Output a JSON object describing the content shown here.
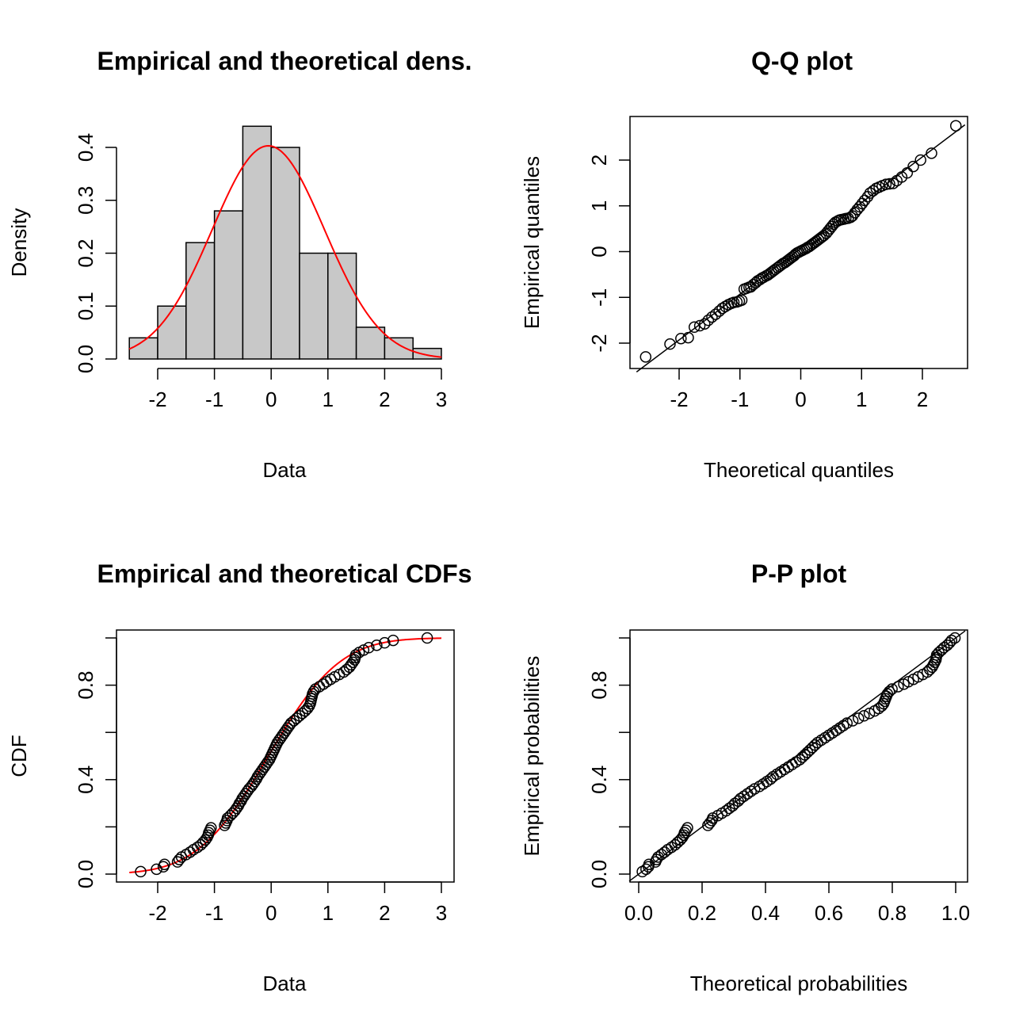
{
  "chart_data": [
    {
      "type": "bar",
      "title": "Empirical and theoretical dens.",
      "xlabel": "Data",
      "ylabel": "Density",
      "xlim": [
        -2.6,
        3.0
      ],
      "ylim": [
        0,
        0.44
      ],
      "x_ticks": [
        -2,
        -1,
        0,
        1,
        2,
        3
      ],
      "y_ticks": [
        0.0,
        0.1,
        0.2,
        0.3,
        0.4
      ],
      "x_tick_labels": [
        "-2",
        "-1",
        "0",
        "1",
        "2",
        "3"
      ],
      "y_tick_labels": [
        "0.0",
        "0.1",
        "0.2",
        "0.3",
        "0.4"
      ],
      "bins": [
        {
          "from": -2.5,
          "to": -2.0,
          "density": 0.04
        },
        {
          "from": -2.0,
          "to": -1.5,
          "density": 0.1
        },
        {
          "from": -1.5,
          "to": -1.0,
          "density": 0.22
        },
        {
          "from": -1.0,
          "to": -0.5,
          "density": 0.28
        },
        {
          "from": -0.5,
          "to": 0.0,
          "density": 0.44
        },
        {
          "from": 0.0,
          "to": 0.5,
          "density": 0.4
        },
        {
          "from": 0.5,
          "to": 1.0,
          "density": 0.2
        },
        {
          "from": 1.0,
          "to": 1.5,
          "density": 0.2
        },
        {
          "from": 1.5,
          "to": 2.0,
          "density": 0.06
        },
        {
          "from": 2.0,
          "to": 2.5,
          "density": 0.04
        },
        {
          "from": 2.5,
          "to": 3.0,
          "density": 0.02
        }
      ],
      "curve": {
        "kind": "normal-density",
        "mean": -0.05,
        "sd": 0.99,
        "from": -2.5,
        "to": 3.0,
        "color": "#ff0000"
      },
      "bar_color": "#c8c8c8"
    },
    {
      "type": "scatter",
      "title": "Q-Q plot",
      "xlabel": "Theoretical quantiles",
      "ylabel": "Empirical quantiles",
      "xlim": [
        -2.7,
        2.7
      ],
      "ylim": [
        -2.5,
        2.8
      ],
      "x_ticks": [
        -2,
        -1,
        0,
        1,
        2
      ],
      "y_ticks": [
        -2,
        -1,
        0,
        1,
        2
      ],
      "x_tick_labels": [
        "-2",
        "-1",
        "0",
        "1",
        "2"
      ],
      "y_tick_labels": [
        "-2",
        "-1",
        "0",
        "1",
        "2"
      ],
      "points": [
        [
          -2.55,
          -2.3
        ],
        [
          -2.15,
          -2.02
        ],
        [
          -1.97,
          -1.9
        ],
        [
          -1.85,
          -1.88
        ],
        [
          -1.75,
          -1.65
        ],
        [
          -1.66,
          -1.62
        ],
        [
          -1.58,
          -1.58
        ],
        [
          -1.52,
          -1.5
        ],
        [
          -1.46,
          -1.43
        ],
        [
          -1.4,
          -1.37
        ],
        [
          -1.34,
          -1.3
        ],
        [
          -1.29,
          -1.24
        ],
        [
          -1.24,
          -1.2
        ],
        [
          -1.19,
          -1.16
        ],
        [
          -1.14,
          -1.13
        ],
        [
          -1.1,
          -1.11
        ],
        [
          -1.05,
          -1.1
        ],
        [
          -1.01,
          -1.08
        ],
        [
          -0.97,
          -1.06
        ],
        [
          -0.93,
          -0.82
        ],
        [
          -0.89,
          -0.8
        ],
        [
          -0.85,
          -0.78
        ],
        [
          -0.82,
          -0.77
        ],
        [
          -0.78,
          -0.72
        ],
        [
          -0.74,
          -0.68
        ],
        [
          -0.71,
          -0.64
        ],
        [
          -0.67,
          -0.61
        ],
        [
          -0.64,
          -0.58
        ],
        [
          -0.61,
          -0.56
        ],
        [
          -0.57,
          -0.53
        ],
        [
          -0.54,
          -0.51
        ],
        [
          -0.51,
          -0.48
        ],
        [
          -0.48,
          -0.45
        ],
        [
          -0.45,
          -0.42
        ],
        [
          -0.42,
          -0.39
        ],
        [
          -0.38,
          -0.35
        ],
        [
          -0.35,
          -0.32
        ],
        [
          -0.32,
          -0.29
        ],
        [
          -0.29,
          -0.26
        ],
        [
          -0.26,
          -0.24
        ],
        [
          -0.23,
          -0.21
        ],
        [
          -0.2,
          -0.18
        ],
        [
          -0.17,
          -0.15
        ],
        [
          -0.14,
          -0.12
        ],
        [
          -0.11,
          -0.09
        ],
        [
          -0.09,
          -0.06
        ],
        [
          -0.06,
          -0.03
        ],
        [
          -0.03,
          -0.01
        ],
        [
          0.0,
          0.01
        ],
        [
          0.03,
          0.03
        ],
        [
          0.06,
          0.05
        ],
        [
          0.09,
          0.07
        ],
        [
          0.11,
          0.09
        ],
        [
          0.14,
          0.11
        ],
        [
          0.17,
          0.14
        ],
        [
          0.2,
          0.17
        ],
        [
          0.23,
          0.2
        ],
        [
          0.26,
          0.23
        ],
        [
          0.29,
          0.26
        ],
        [
          0.32,
          0.29
        ],
        [
          0.35,
          0.32
        ],
        [
          0.38,
          0.35
        ],
        [
          0.42,
          0.4
        ],
        [
          0.45,
          0.45
        ],
        [
          0.48,
          0.5
        ],
        [
          0.51,
          0.55
        ],
        [
          0.54,
          0.6
        ],
        [
          0.57,
          0.64
        ],
        [
          0.61,
          0.67
        ],
        [
          0.64,
          0.69
        ],
        [
          0.67,
          0.7
        ],
        [
          0.71,
          0.71
        ],
        [
          0.74,
          0.72
        ],
        [
          0.78,
          0.73
        ],
        [
          0.82,
          0.75
        ],
        [
          0.85,
          0.78
        ],
        [
          0.89,
          0.85
        ],
        [
          0.93,
          0.92
        ],
        [
          0.97,
          0.98
        ],
        [
          1.01,
          1.05
        ],
        [
          1.05,
          1.12
        ],
        [
          1.1,
          1.2
        ],
        [
          1.14,
          1.28
        ],
        [
          1.19,
          1.33
        ],
        [
          1.24,
          1.38
        ],
        [
          1.29,
          1.41
        ],
        [
          1.34,
          1.44
        ],
        [
          1.4,
          1.47
        ],
        [
          1.46,
          1.48
        ],
        [
          1.52,
          1.49
        ],
        [
          1.58,
          1.55
        ],
        [
          1.66,
          1.63
        ],
        [
          1.75,
          1.72
        ],
        [
          1.85,
          1.86
        ],
        [
          1.97,
          2.0
        ],
        [
          2.15,
          2.15
        ],
        [
          2.55,
          2.75
        ]
      ],
      "reference_line": {
        "from": [
          -2.7,
          -2.63
        ],
        "to": [
          2.7,
          2.77
        ]
      }
    },
    {
      "type": "line",
      "title": "Empirical and theoretical CDFs",
      "xlabel": "Data",
      "ylabel": "CDF",
      "xlim": [
        -2.8,
        3.2
      ],
      "ylim": [
        -0.03,
        1.03
      ],
      "x_ticks": [
        -2,
        -1,
        0,
        1,
        2,
        3
      ],
      "y_ticks": [
        0.0,
        0.2,
        0.4,
        0.6,
        0.8,
        1.0
      ],
      "x_tick_labels": [
        "-2",
        "-1",
        "0",
        "1",
        "2",
        "3"
      ],
      "y_tick_labels": [
        "0.0",
        "",
        "0.4",
        "",
        "0.8",
        ""
      ],
      "curve": {
        "kind": "normal-cdf",
        "mean": -0.05,
        "sd": 0.99,
        "from": -2.5,
        "to": 3.0,
        "color": "#ff0000"
      },
      "points_x": [
        -2.3,
        -2.02,
        -1.9,
        -1.88,
        -1.65,
        -1.62,
        -1.58,
        -1.5,
        -1.43,
        -1.37,
        -1.3,
        -1.24,
        -1.2,
        -1.16,
        -1.13,
        -1.11,
        -1.1,
        -1.08,
        -1.06,
        -0.82,
        -0.8,
        -0.78,
        -0.77,
        -0.72,
        -0.68,
        -0.64,
        -0.61,
        -0.58,
        -0.56,
        -0.53,
        -0.51,
        -0.48,
        -0.45,
        -0.42,
        -0.39,
        -0.35,
        -0.32,
        -0.29,
        -0.26,
        -0.24,
        -0.21,
        -0.18,
        -0.15,
        -0.12,
        -0.09,
        -0.06,
        -0.03,
        -0.01,
        0.01,
        0.03,
        0.05,
        0.07,
        0.09,
        0.11,
        0.14,
        0.17,
        0.2,
        0.23,
        0.26,
        0.29,
        0.32,
        0.35,
        0.4,
        0.45,
        0.5,
        0.55,
        0.6,
        0.64,
        0.67,
        0.69,
        0.7,
        0.71,
        0.72,
        0.73,
        0.75,
        0.78,
        0.85,
        0.92,
        0.98,
        1.05,
        1.12,
        1.2,
        1.28,
        1.33,
        1.38,
        1.41,
        1.44,
        1.47,
        1.48,
        1.49,
        1.55,
        1.63,
        1.72,
        1.86,
        2.0,
        2.15,
        2.75
      ]
    },
    {
      "type": "scatter",
      "title": "P-P plot",
      "xlabel": "Theoretical probabilities",
      "ylabel": "Empirical probabilities",
      "xlim": [
        -0.03,
        1.03
      ],
      "ylim": [
        -0.03,
        1.03
      ],
      "x_ticks": [
        0.0,
        0.2,
        0.4,
        0.6,
        0.8,
        1.0
      ],
      "y_ticks": [
        0.0,
        0.2,
        0.4,
        0.6,
        0.8,
        1.0
      ],
      "x_tick_labels": [
        "0.0",
        "0.2",
        "0.4",
        "0.6",
        "0.8",
        "1.0"
      ],
      "y_tick_labels": [
        "0.0",
        "",
        "0.4",
        "",
        "0.8",
        ""
      ],
      "reference_line": {
        "from": [
          -0.03,
          -0.03
        ],
        "to": [
          1.03,
          1.03
        ]
      }
    }
  ]
}
